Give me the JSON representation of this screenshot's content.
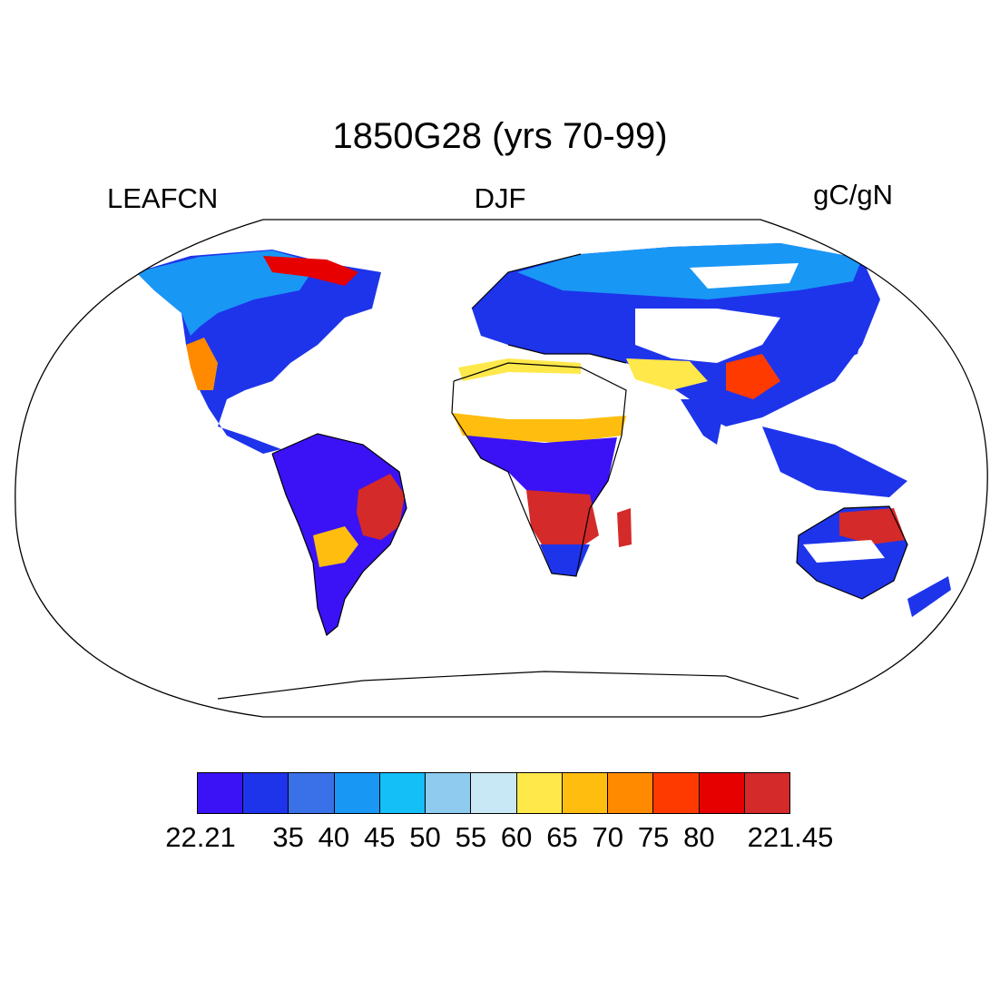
{
  "title": "1850G28 (yrs 70-99)",
  "left_label": "LEAFCN",
  "center_label": "DJF",
  "right_label": "gC/gN",
  "colorbar": {
    "colors": [
      "#3a12f5",
      "#1e34ea",
      "#3a70e8",
      "#1997f5",
      "#14bef7",
      "#8ecbee",
      "#c8e8f6",
      "#ffe84a",
      "#ffbd10",
      "#ff8a00",
      "#ff3a00",
      "#e60000",
      "#d42a2a"
    ],
    "labels": [
      {
        "text": "22.21",
        "boundary": 0
      },
      {
        "text": "35",
        "boundary": 2
      },
      {
        "text": "40",
        "boundary": 3
      },
      {
        "text": "45",
        "boundary": 4
      },
      {
        "text": "50",
        "boundary": 5
      },
      {
        "text": "55",
        "boundary": 6
      },
      {
        "text": "60",
        "boundary": 7
      },
      {
        "text": "65",
        "boundary": 8
      },
      {
        "text": "70",
        "boundary": 9
      },
      {
        "text": "75",
        "boundary": 10
      },
      {
        "text": "80",
        "boundary": 11
      },
      {
        "text": "221.45",
        "boundary": 13
      }
    ]
  }
}
